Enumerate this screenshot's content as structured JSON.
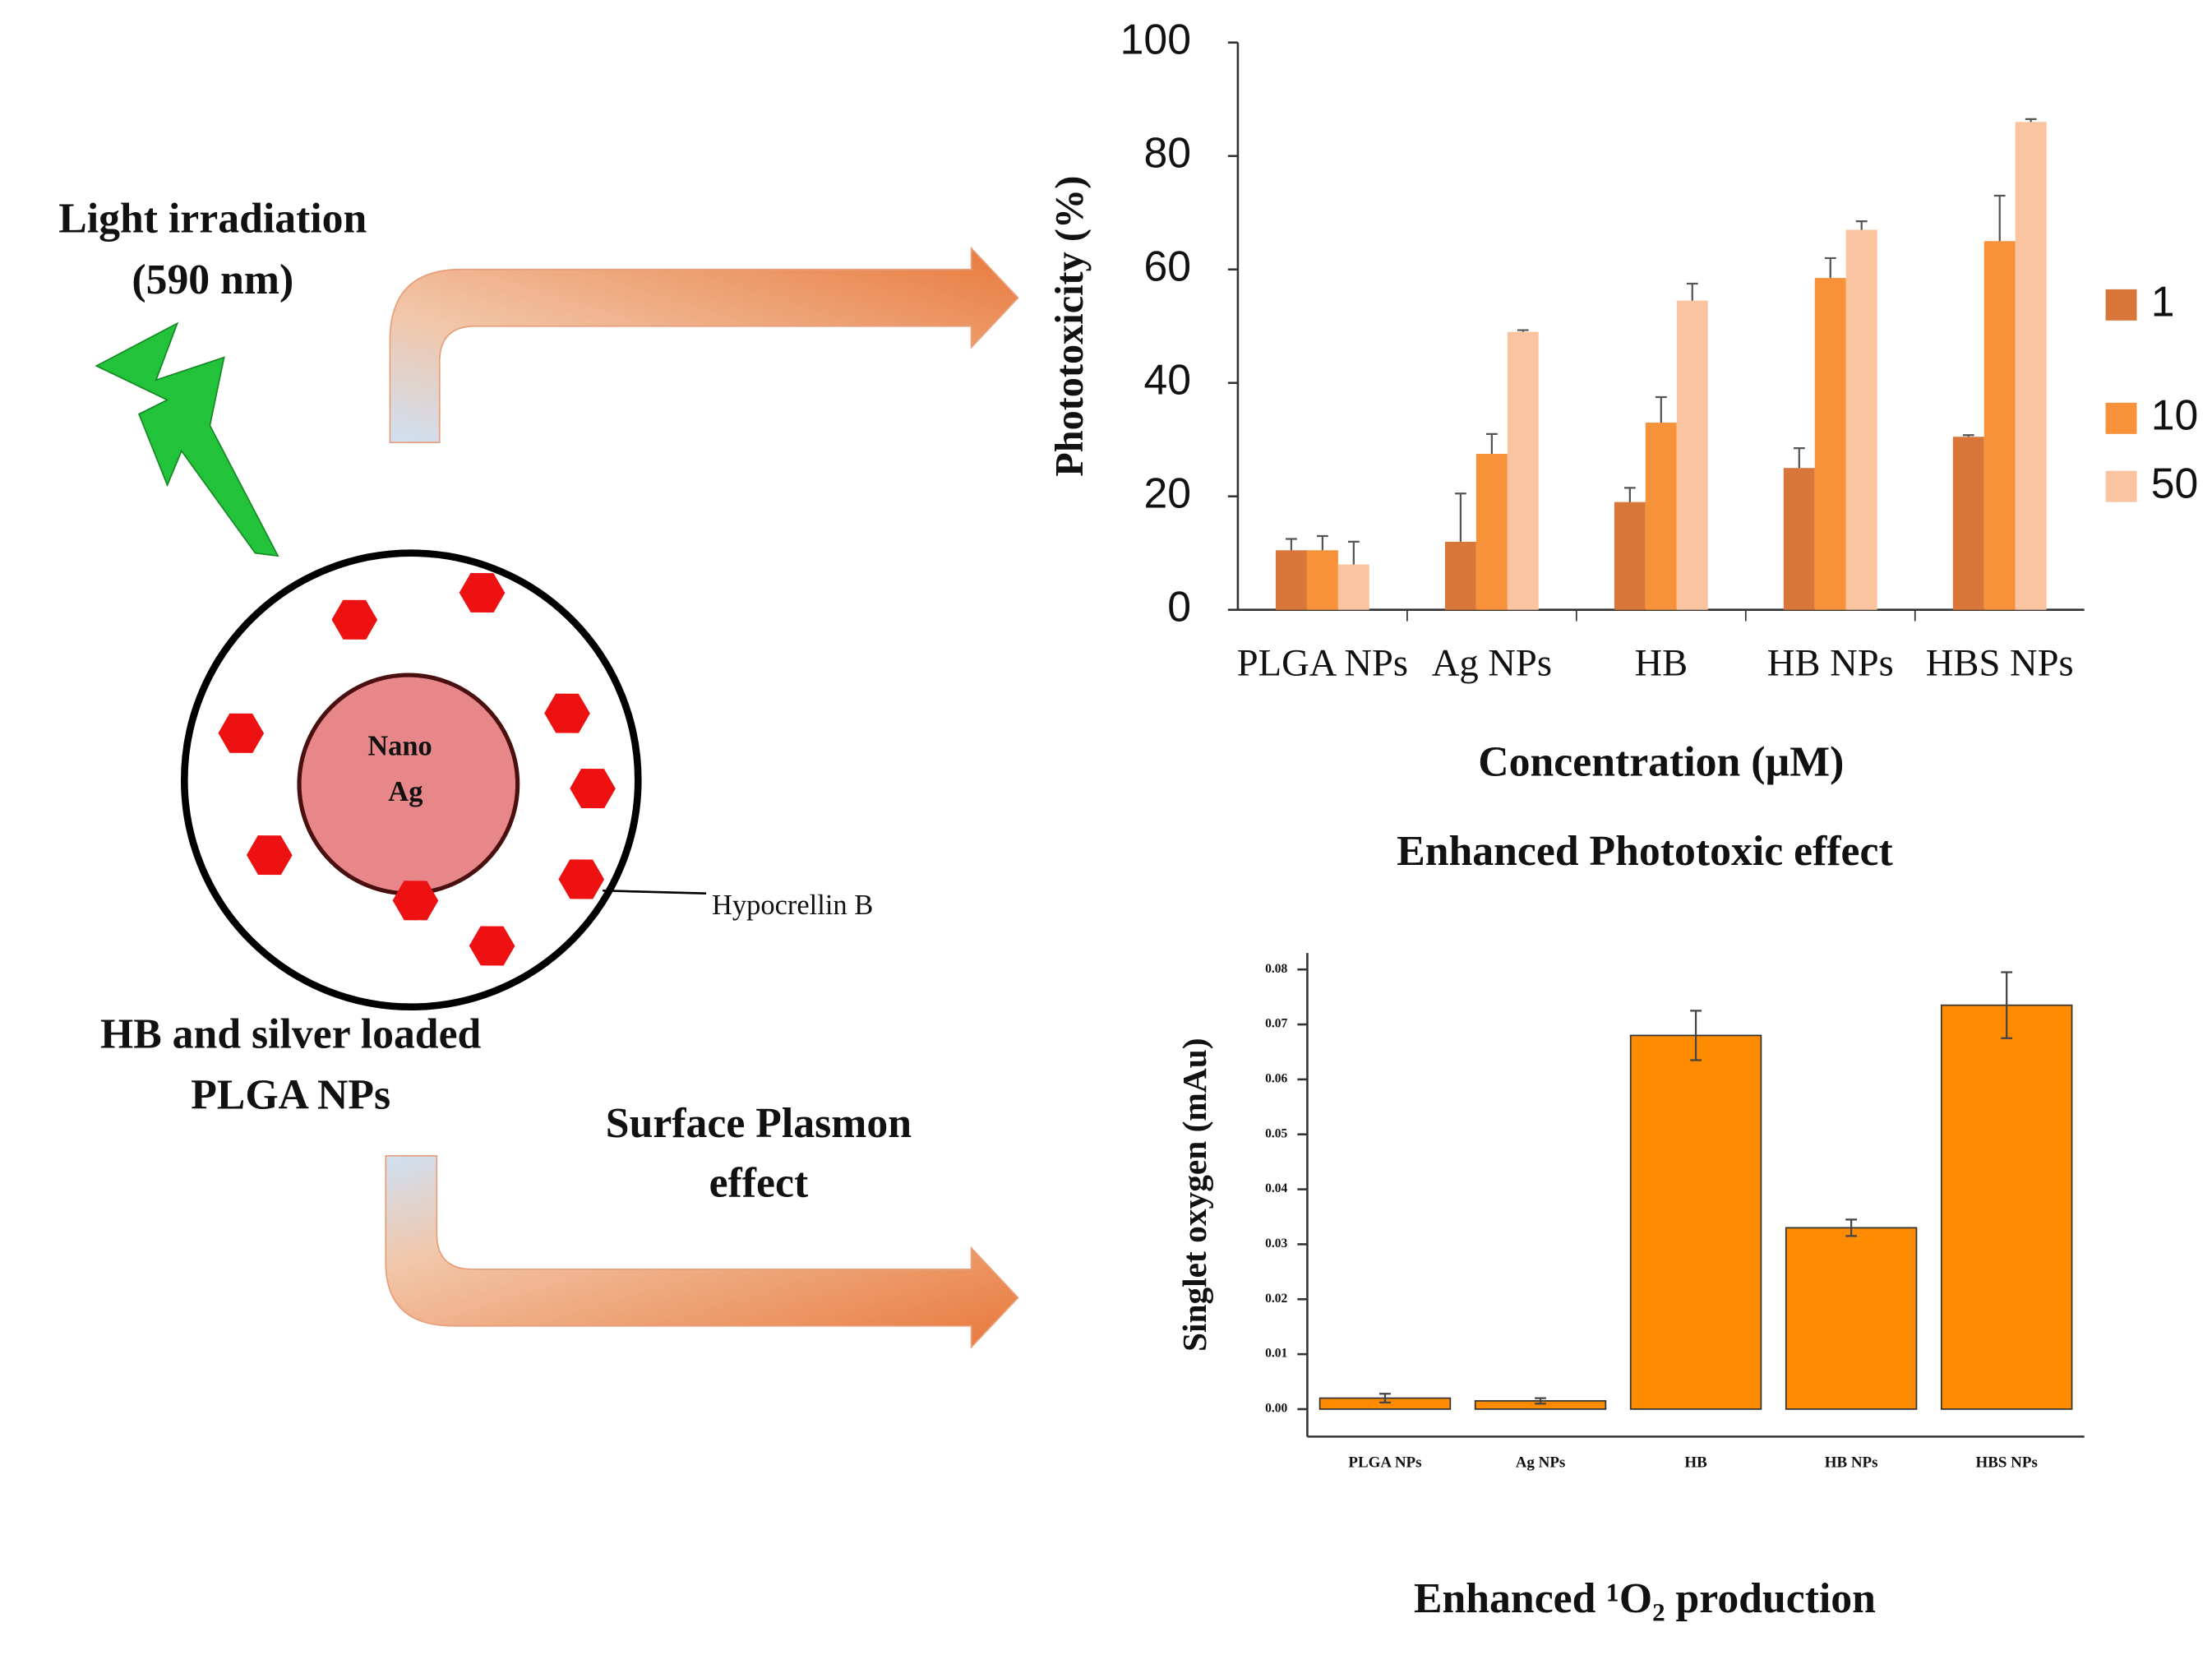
{
  "chart_data": [
    {
      "type": "bar",
      "y_label": "Phototoxicity (%)",
      "x_label": "Concentration (µM)",
      "caption": "Enhanced Phototoxic effect",
      "categories": [
        "PLGA NPs",
        "Ag NPs",
        "HB",
        "HB NPs",
        "HBS NPs"
      ],
      "series": [
        {
          "name": "1",
          "color": "#d9773a",
          "values": [
            10.5,
            12,
            19,
            25,
            30.5
          ],
          "errors": [
            2,
            8.5,
            2.5,
            3.5,
            0.3
          ]
        },
        {
          "name": "10",
          "color": "#f7923a",
          "values": [
            10.5,
            27.5,
            33,
            58.5,
            65
          ],
          "errors": [
            2.5,
            3.5,
            4.5,
            3.5,
            8
          ]
        },
        {
          "name": "50",
          "color": "#fbc4a0",
          "values": [
            8,
            49,
            54.5,
            67,
            86
          ],
          "errors": [
            4,
            0.3,
            3,
            1.5,
            0.5
          ]
        }
      ],
      "ylim": [
        0,
        100
      ],
      "yticks": [
        0,
        20,
        40,
        60,
        80,
        100
      ],
      "grid": false,
      "legend": "right"
    },
    {
      "type": "bar",
      "y_label": "Singlet oxygen (mAu)",
      "caption": "Enhanced ¹O₂ production",
      "categories": [
        "PLGA NPs",
        "Ag NPs",
        "HB",
        "HB NPs",
        "HBS NPs"
      ],
      "values": [
        0.002,
        0.0015,
        0.068,
        0.033,
        0.0735
      ],
      "errors": [
        0.0008,
        0.0005,
        0.0045,
        0.0015,
        0.006
      ],
      "color": "#ff8c00",
      "ylim": [
        -0.005,
        0.083
      ],
      "yticks": [
        {
          "value": 0,
          "label": "0.00"
        },
        0.01,
        0.02,
        0.03,
        0.04,
        0.05,
        0.06,
        0.07,
        0.08
      ],
      "grid": false
    }
  ],
  "diagram": {
    "light": [
      "Light irradiation",
      "(590 nm)"
    ],
    "core": [
      "Nano",
      "Ag"
    ],
    "label": "Hypocrellin B",
    "particle": [
      "HB and silver loaded",
      "PLGA NPs"
    ],
    "effect": [
      "Surface Plasmon",
      "effect"
    ]
  }
}
